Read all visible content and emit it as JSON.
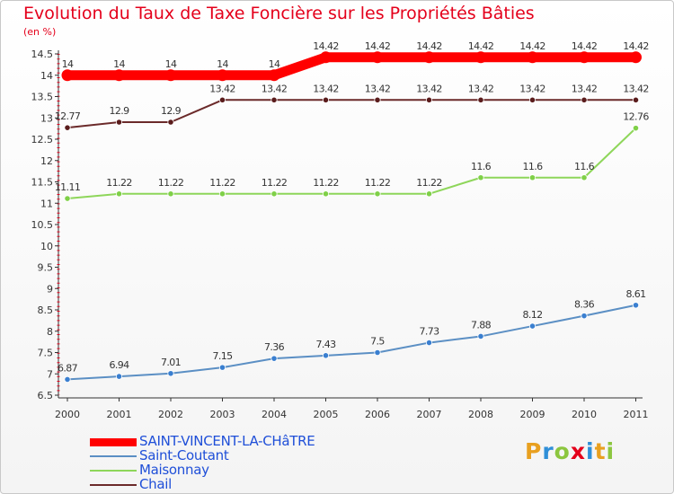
{
  "title": "Evolution du Taux de Taxe Foncière sur les Propriétés Bâties",
  "unit_label": "(en %)",
  "logo": {
    "letters": [
      {
        "ch": "P",
        "color": "#e8a020"
      },
      {
        "ch": "r",
        "color": "#2f8fd8"
      },
      {
        "ch": "o",
        "color": "#8cc63f"
      },
      {
        "ch": "x",
        "color": "#e4001b"
      },
      {
        "ch": "i",
        "color": "#2f8fd8"
      },
      {
        "ch": "t",
        "color": "#e8a020"
      },
      {
        "ch": "i",
        "color": "#8cc63f"
      }
    ]
  },
  "chart_data": {
    "type": "line",
    "title": "Evolution du Taux de Taxe Foncière sur les Propriétés Bâties",
    "ylabel": "(en %)",
    "xlabel": "",
    "x": [
      "2000",
      "2001",
      "2002",
      "2003",
      "2004",
      "2005",
      "2006",
      "2007",
      "2008",
      "2009",
      "2010",
      "2011"
    ],
    "ylim": [
      6.5,
      14.5
    ],
    "yticks": [
      "6.5",
      "7",
      "7.5",
      "8",
      "8.5",
      "9",
      "9.5",
      "10",
      "10.5",
      "11",
      "11.5",
      "12",
      "12.5",
      "13",
      "13.5",
      "14",
      "14.5"
    ],
    "grid": false,
    "legend_position": "bottom-left",
    "series": [
      {
        "name": "SAINT-VINCENT-LA-CHâTRE",
        "color": "#ff0000",
        "marker": "#ff0000",
        "width": 11,
        "values": [
          14,
          14,
          14,
          14,
          14,
          14.42,
          14.42,
          14.42,
          14.42,
          14.42,
          14.42,
          14.42
        ],
        "labels": [
          "14",
          "14",
          "14",
          "14",
          "14",
          "14.42",
          "14.42",
          "14.42",
          "14.42",
          "14.42",
          "14.42",
          "14.42"
        ]
      },
      {
        "name": "Saint-Coutant",
        "color": "#5b8fc4",
        "marker": "#3a7fd0",
        "width": 2,
        "values": [
          6.87,
          6.94,
          7.01,
          7.15,
          7.36,
          7.43,
          7.5,
          7.73,
          7.88,
          8.12,
          8.36,
          8.61
        ],
        "labels": [
          "6.87",
          "6.94",
          "7.01",
          "7.15",
          "7.36",
          "7.43",
          "7.5",
          "7.73",
          "7.88",
          "8.12",
          "8.36",
          "8.61"
        ]
      },
      {
        "name": "Maisonnay",
        "color": "#8ed65a",
        "marker": "#7fd048",
        "width": 2,
        "values": [
          11.11,
          11.22,
          11.22,
          11.22,
          11.22,
          11.22,
          11.22,
          11.22,
          11.6,
          11.6,
          11.6,
          12.76
        ],
        "labels": [
          "11.11",
          "11.22",
          "11.22",
          "11.22",
          "11.22",
          "11.22",
          "11.22",
          "11.22",
          "11.6",
          "11.6",
          "11.6",
          "12.76"
        ]
      },
      {
        "name": "Chail",
        "color": "#6b2a2a",
        "marker": "#5a1c1c",
        "width": 2,
        "values": [
          12.77,
          12.9,
          12.9,
          13.42,
          13.42,
          13.42,
          13.42,
          13.42,
          13.42,
          13.42,
          13.42,
          13.42
        ],
        "labels": [
          "12.77",
          "12.9",
          "12.9",
          "13.42",
          "13.42",
          "13.42",
          "13.42",
          "13.42",
          "13.42",
          "13.42",
          "13.42",
          "13.42"
        ]
      }
    ]
  }
}
